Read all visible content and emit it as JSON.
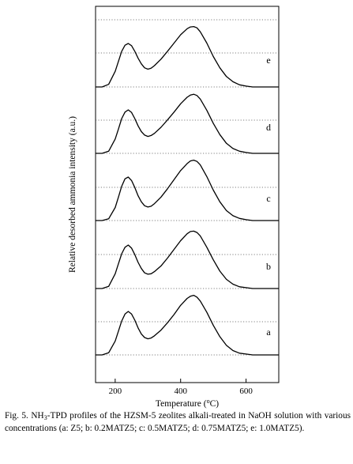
{
  "chart_data": {
    "type": "line",
    "title": "",
    "xlabel": "Temperature (°C)",
    "ylabel": "Relative desorbed ammonia intensity (a.u.)",
    "xticks": [
      200,
      400,
      600
    ],
    "xlim": [
      140,
      700
    ],
    "x": [
      140,
      160,
      180,
      200,
      210,
      220,
      230,
      240,
      250,
      260,
      270,
      280,
      290,
      300,
      310,
      320,
      340,
      360,
      380,
      400,
      420,
      430,
      440,
      450,
      460,
      480,
      500,
      520,
      540,
      560,
      580,
      600,
      620,
      650,
      700
    ],
    "series": [
      {
        "name": "a",
        "values": [
          0.0,
          0.0,
          0.05,
          0.32,
          0.55,
          0.78,
          0.94,
          1.0,
          0.94,
          0.8,
          0.62,
          0.48,
          0.4,
          0.37,
          0.39,
          0.44,
          0.57,
          0.74,
          0.93,
          1.14,
          1.3,
          1.35,
          1.37,
          1.33,
          1.24,
          0.98,
          0.68,
          0.42,
          0.22,
          0.1,
          0.04,
          0.02,
          0.0,
          0.0,
          0.0
        ]
      },
      {
        "name": "b",
        "values": [
          0.0,
          0.0,
          0.05,
          0.34,
          0.57,
          0.8,
          0.95,
          1.0,
          0.93,
          0.78,
          0.6,
          0.46,
          0.36,
          0.33,
          0.34,
          0.39,
          0.52,
          0.7,
          0.9,
          1.1,
          1.26,
          1.31,
          1.32,
          1.29,
          1.21,
          0.95,
          0.66,
          0.4,
          0.21,
          0.1,
          0.04,
          0.02,
          0.0,
          0.0,
          0.0
        ]
      },
      {
        "name": "c",
        "values": [
          0.0,
          0.0,
          0.04,
          0.3,
          0.54,
          0.79,
          0.96,
          1.0,
          0.92,
          0.76,
          0.57,
          0.43,
          0.34,
          0.31,
          0.33,
          0.39,
          0.54,
          0.73,
          0.94,
          1.15,
          1.31,
          1.37,
          1.39,
          1.36,
          1.28,
          1.01,
          0.7,
          0.43,
          0.23,
          0.11,
          0.05,
          0.02,
          0.0,
          0.0,
          0.0
        ]
      },
      {
        "name": "d",
        "values": [
          0.0,
          0.0,
          0.05,
          0.33,
          0.56,
          0.8,
          0.95,
          1.0,
          0.94,
          0.8,
          0.63,
          0.5,
          0.42,
          0.39,
          0.41,
          0.46,
          0.6,
          0.77,
          0.95,
          1.14,
          1.29,
          1.34,
          1.36,
          1.33,
          1.25,
          0.99,
          0.69,
          0.43,
          0.23,
          0.11,
          0.05,
          0.02,
          0.0,
          0.0,
          0.0
        ]
      },
      {
        "name": "e",
        "values": [
          0.0,
          0.0,
          0.06,
          0.36,
          0.59,
          0.82,
          0.96,
          1.0,
          0.95,
          0.82,
          0.66,
          0.53,
          0.44,
          0.41,
          0.43,
          0.49,
          0.64,
          0.82,
          1.01,
          1.2,
          1.34,
          1.38,
          1.39,
          1.36,
          1.27,
          1.01,
          0.7,
          0.44,
          0.24,
          0.12,
          0.05,
          0.02,
          0.0,
          0.0,
          0.0
        ]
      }
    ],
    "grid": "dotted horizontal baselines"
  },
  "caption": {
    "prefix": "Fig. 5. NH",
    "sub": "3",
    "suffix": "-TPD profiles of the HZSM-5 zeolites alkali-treated in NaOH solution with various concentrations (a: Z5; b: 0.2MATZ5; c: 0.5MATZ5; d: 0.75MATZ5; e: 1.0MATZ5)."
  }
}
